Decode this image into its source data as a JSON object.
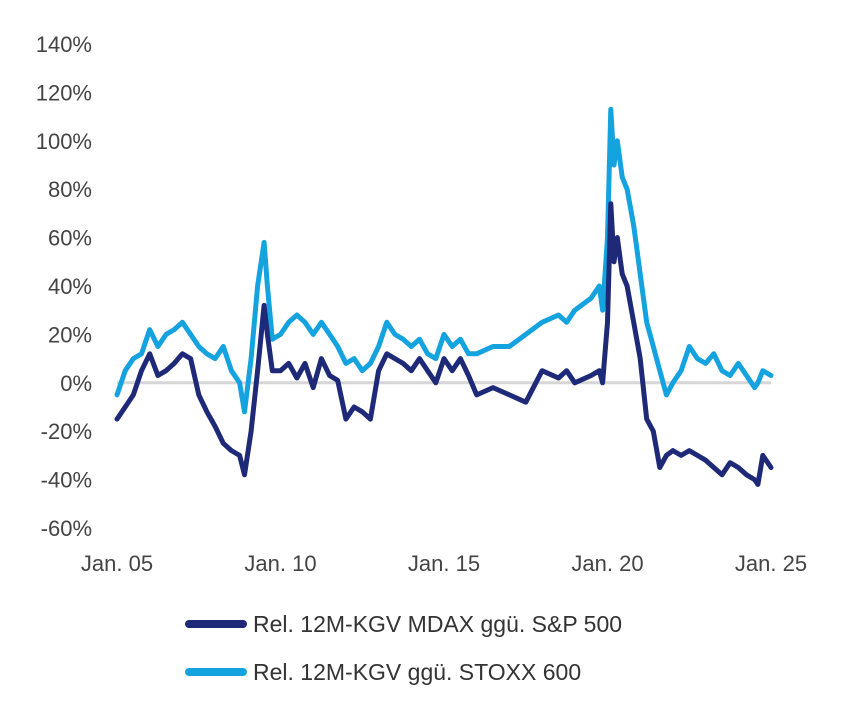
{
  "chart_data": {
    "type": "line",
    "title": "",
    "xlabel": "",
    "ylabel": "",
    "ylim": [
      -60,
      140
    ],
    "yticks": [
      -60,
      -40,
      -20,
      0,
      20,
      40,
      60,
      80,
      100,
      120,
      140
    ],
    "ytick_labels": [
      "-60%",
      "-40%",
      "-20%",
      "0%",
      "20%",
      "40%",
      "60%",
      "80%",
      "100%",
      "120%",
      "140%"
    ],
    "xlim": [
      2005.0,
      2025.0
    ],
    "xticks": [
      2005,
      2010,
      2015,
      2020,
      2025
    ],
    "xtick_labels": [
      "Jan. 05",
      "Jan. 10",
      "Jan. 15",
      "Jan. 20",
      "Jan. 25"
    ],
    "zero_line": true,
    "series": [
      {
        "name": "Rel. 12M-KGV MDAX ggü. S&P 500",
        "color": "#1e2a78",
        "x": [
          2005.0,
          2005.25,
          2005.5,
          2005.75,
          2006.0,
          2006.25,
          2006.5,
          2006.75,
          2007.0,
          2007.25,
          2007.5,
          2007.75,
          2008.0,
          2008.25,
          2008.5,
          2008.75,
          2008.9,
          2009.1,
          2009.3,
          2009.5,
          2009.6,
          2009.75,
          2010.0,
          2010.25,
          2010.5,
          2010.75,
          2011.0,
          2011.25,
          2011.5,
          2011.75,
          2012.0,
          2012.25,
          2012.5,
          2012.75,
          2013.0,
          2013.25,
          2013.5,
          2013.75,
          2014.0,
          2014.25,
          2014.5,
          2014.75,
          2015.0,
          2015.25,
          2015.5,
          2015.75,
          2016.0,
          2016.5,
          2017.0,
          2017.5,
          2018.0,
          2018.5,
          2018.75,
          2019.0,
          2019.5,
          2019.75,
          2019.85,
          2020.0,
          2020.1,
          2020.2,
          2020.3,
          2020.45,
          2020.6,
          2020.8,
          2021.0,
          2021.2,
          2021.4,
          2021.6,
          2021.8,
          2022.0,
          2022.25,
          2022.5,
          2022.75,
          2023.0,
          2023.25,
          2023.5,
          2023.75,
          2024.0,
          2024.25,
          2024.5,
          2024.6,
          2024.75,
          2025.0
        ],
        "y": [
          -15,
          -10,
          -5,
          5,
          12,
          3,
          5,
          8,
          12,
          10,
          -5,
          -12,
          -18,
          -25,
          -28,
          -30,
          -38,
          -20,
          5,
          32,
          20,
          5,
          5,
          8,
          2,
          8,
          -2,
          10,
          3,
          1,
          -15,
          -10,
          -12,
          -15,
          5,
          12,
          10,
          8,
          5,
          10,
          5,
          0,
          10,
          5,
          10,
          3,
          -5,
          -2,
          -5,
          -8,
          5,
          2,
          5,
          0,
          3,
          5,
          0,
          25,
          74,
          50,
          60,
          45,
          40,
          25,
          10,
          -15,
          -20,
          -35,
          -30,
          -28,
          -30,
          -28,
          -30,
          -32,
          -35,
          -38,
          -33,
          -35,
          -38,
          -40,
          -42,
          -30,
          -35
        ]
      },
      {
        "name": "Rel. 12M-KGV ggü. STOXX 600",
        "color": "#15a3e0",
        "x": [
          2005.0,
          2005.25,
          2005.5,
          2005.75,
          2006.0,
          2006.25,
          2006.5,
          2006.75,
          2007.0,
          2007.25,
          2007.5,
          2007.75,
          2008.0,
          2008.25,
          2008.5,
          2008.75,
          2008.9,
          2009.1,
          2009.3,
          2009.5,
          2009.6,
          2009.75,
          2010.0,
          2010.25,
          2010.5,
          2010.75,
          2011.0,
          2011.25,
          2011.5,
          2011.75,
          2012.0,
          2012.25,
          2012.5,
          2012.75,
          2013.0,
          2013.25,
          2013.5,
          2013.75,
          2014.0,
          2014.25,
          2014.5,
          2014.75,
          2015.0,
          2015.25,
          2015.5,
          2015.75,
          2016.0,
          2016.5,
          2017.0,
          2017.5,
          2018.0,
          2018.5,
          2018.75,
          2019.0,
          2019.5,
          2019.75,
          2019.85,
          2020.0,
          2020.1,
          2020.2,
          2020.3,
          2020.45,
          2020.6,
          2020.8,
          2021.0,
          2021.2,
          2021.4,
          2021.6,
          2021.8,
          2022.0,
          2022.25,
          2022.5,
          2022.75,
          2023.0,
          2023.25,
          2023.5,
          2023.75,
          2024.0,
          2024.25,
          2024.5,
          2024.6,
          2024.75,
          2025.0
        ],
        "y": [
          -5,
          5,
          10,
          12,
          22,
          15,
          20,
          22,
          25,
          20,
          15,
          12,
          10,
          15,
          5,
          0,
          -12,
          10,
          40,
          58,
          40,
          18,
          20,
          25,
          28,
          25,
          20,
          25,
          20,
          15,
          8,
          10,
          5,
          8,
          15,
          25,
          20,
          18,
          15,
          18,
          12,
          10,
          20,
          15,
          18,
          12,
          12,
          15,
          15,
          20,
          25,
          28,
          25,
          30,
          35,
          40,
          30,
          60,
          113,
          90,
          100,
          85,
          80,
          65,
          45,
          25,
          15,
          5,
          -5,
          0,
          5,
          15,
          10,
          8,
          12,
          5,
          3,
          8,
          3,
          -2,
          0,
          5,
          3
        ]
      }
    ]
  }
}
